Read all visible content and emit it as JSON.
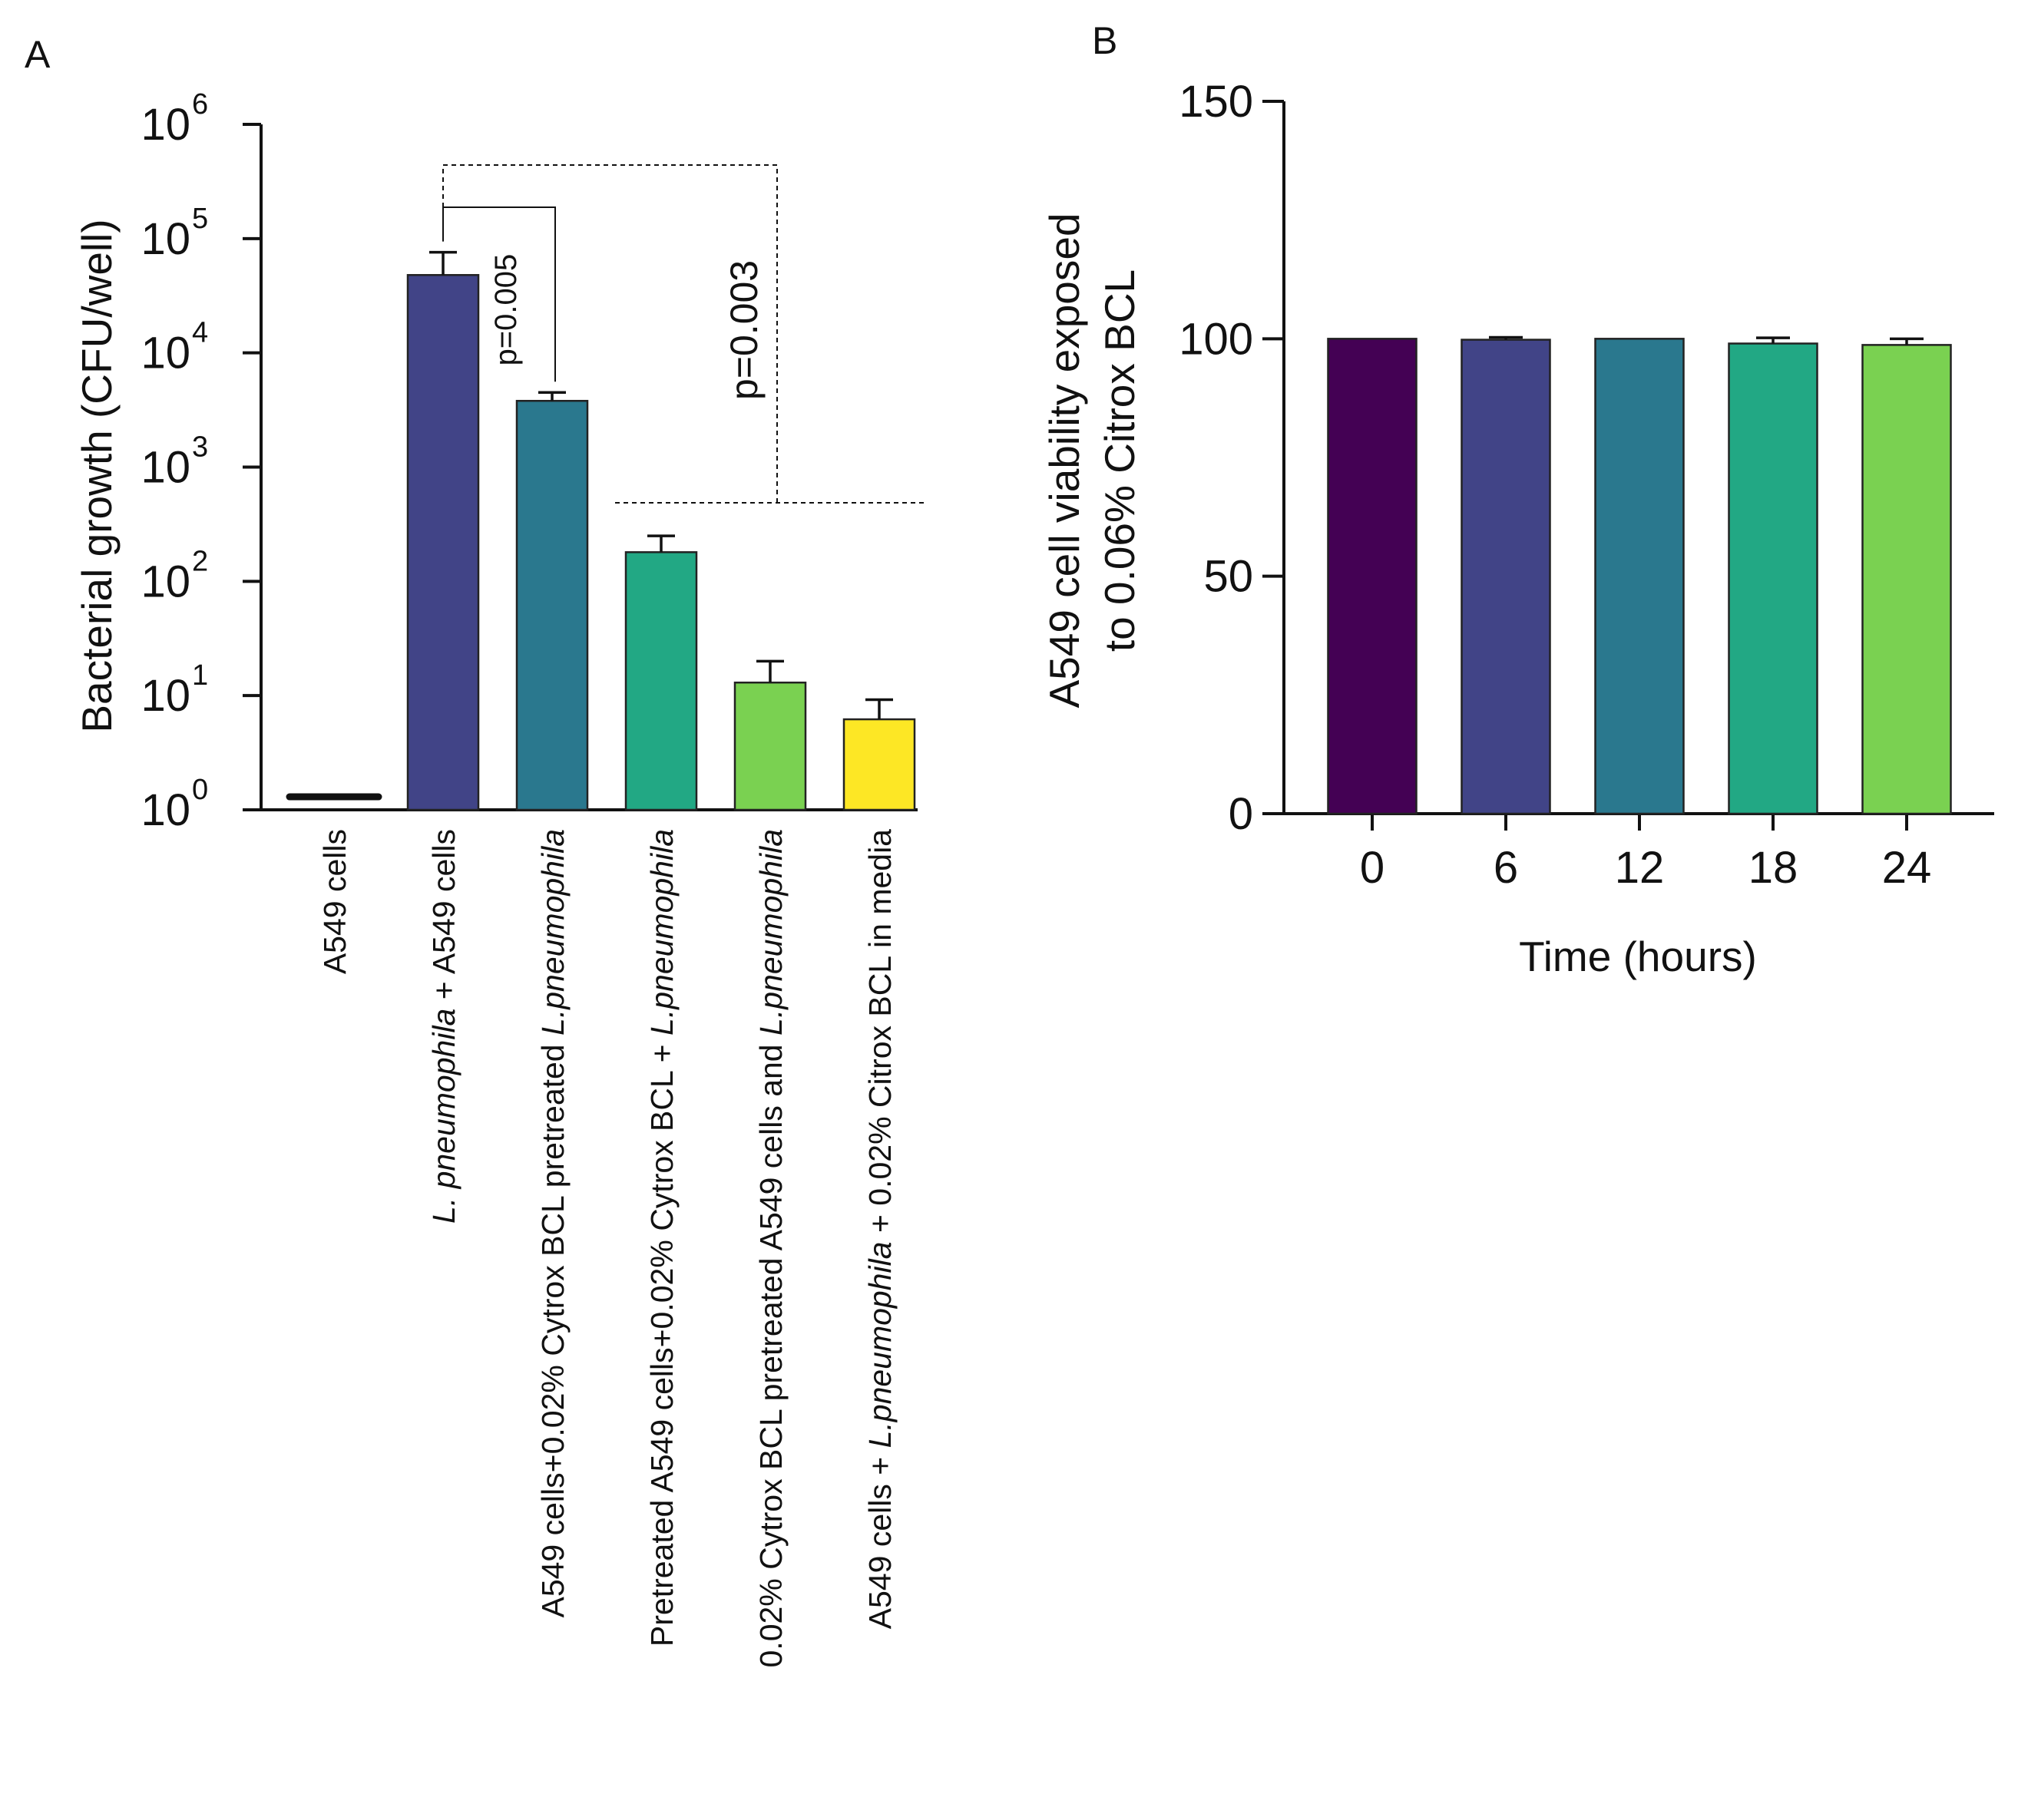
{
  "chart_data": [
    {
      "panel_label": "A",
      "type": "bar",
      "yscale": "log",
      "ylabel": "Bacterial growth (CFU/well)",
      "ylim": [
        1,
        1000000
      ],
      "ytick_base": "10",
      "ytick_exponents": [
        "0",
        "1",
        "2",
        "3",
        "4",
        "5",
        "6"
      ],
      "categories": [
        [
          {
            "text": "A549 cells",
            "italic": false
          }
        ],
        [
          {
            "text": "L. pneumophila",
            "italic": true
          },
          {
            "text": " + A549 cells",
            "italic": false
          }
        ],
        [
          {
            "text": "A549 cells+0.02% Cytrox BCL pretreated ",
            "italic": false
          },
          {
            "text": "L.pneumophila",
            "italic": true
          }
        ],
        [
          {
            "text": "Pretreated A549 cells+0.02% Cytrox BCL + ",
            "italic": false
          },
          {
            "text": "L.pneumophila",
            "italic": true
          }
        ],
        [
          {
            "text": "0.02% Cytrox BCL pretreated A549 cells and ",
            "italic": false
          },
          {
            "text": "L.pneumophila",
            "italic": true
          }
        ],
        [
          {
            "text": "A549 cells + ",
            "italic": false
          },
          {
            "text": "L.pneumophila",
            "italic": true
          },
          {
            "text": " +  0.02% Citrox BCL in media",
            "italic": false
          }
        ]
      ],
      "values": [
        1.3,
        48000,
        3800,
        180,
        13,
        6.2
      ],
      "errors": [
        0,
        28000,
        700,
        70,
        7,
        3
      ],
      "colors": [
        "#111111",
        "#414487",
        "#2a788e",
        "#22a884",
        "#7ad151",
        "#fde725"
      ],
      "annotations": [
        {
          "text": "p=0.005",
          "from": 1,
          "to": 2
        },
        {
          "text": "p=0.003",
          "from": 1,
          "to": [
            3,
            5
          ]
        }
      ]
    },
    {
      "panel_label": "B",
      "type": "bar",
      "ylabel_lines": [
        "A549 cell viability exposed",
        "to 0.06% Citrox BCL"
      ],
      "xlabel": "Time (hours)",
      "ylim": [
        0,
        150
      ],
      "yticks": [
        0,
        50,
        100,
        150
      ],
      "categories": [
        "0",
        "6",
        "12",
        "18",
        "24"
      ],
      "values": [
        100,
        99.8,
        100,
        99,
        98.7
      ],
      "errors": [
        0,
        0.5,
        0,
        1.2,
        1.3
      ],
      "colors": [
        "#440154",
        "#414487",
        "#2a788e",
        "#22a884",
        "#7ad151"
      ]
    }
  ]
}
